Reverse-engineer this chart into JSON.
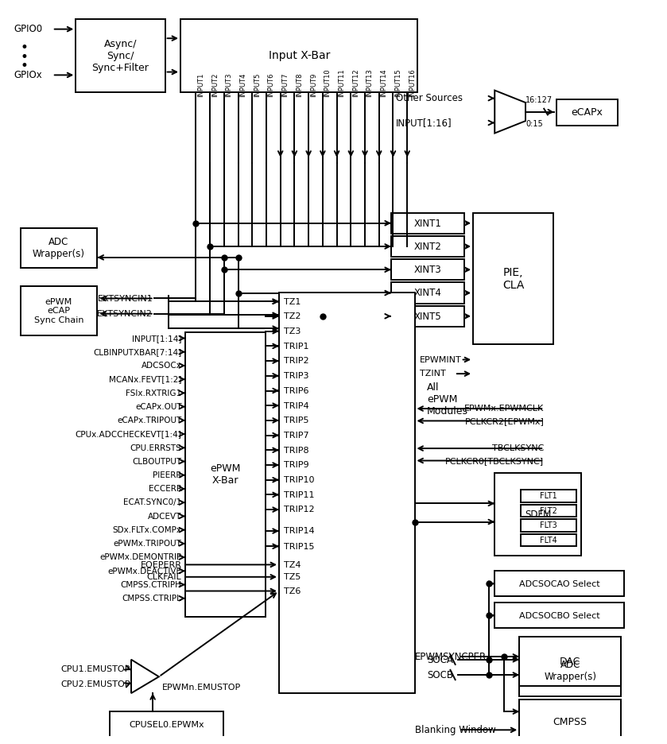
{
  "bg_color": "#ffffff",
  "line_color": "#000000",
  "epwm_left_inputs": [
    "INPUT[1:14]",
    "CLBINPUTXBAR[7:14]",
    "ADCSOCx",
    "MCANx.FEVT[1:2]",
    "FSIx.RXTRIG1",
    "eCAPx.OUT",
    "eCAPx.TRIPOUT",
    "CPUx.ADCCHECKEVT[1:4]",
    "CPU.ERRSTS",
    "CLBOUTPUT",
    "PIEERR",
    "ECCERR",
    "ECAT.SYNC0/1",
    "ADCEVT",
    "SDx.FLTx.COMPx",
    "ePWMx.TRIPOUT",
    "ePWMx.DEMONTRIP",
    "ePWMx.DEACTIVE",
    "CMPSS.CTRIPH",
    "CMPSS.CTRIPL"
  ],
  "epwm_outputs_right": [
    "TZ1",
    "TZ2",
    "TZ3",
    "TRIP1",
    "TRIP2",
    "TRIP3",
    "TRIP6",
    "TRIP4",
    "TRIP5",
    "TRIP7",
    "TRIP8",
    "TRIP9",
    "TRIP10",
    "TRIP11",
    "TRIP12"
  ],
  "xint_labels": [
    "XINT1",
    "XINT2",
    "XINT3",
    "XINT4",
    "XINT5"
  ],
  "input_labels": [
    "INPUT1",
    "INPUT2",
    "INPUT3",
    "INPUT4",
    "INPUT5",
    "INPUT6",
    "INPUT7",
    "INPUT8",
    "INPUT9",
    "INPUT10",
    "INPUT11",
    "INPUT12",
    "INPUT13",
    "INPUT14",
    "INPUT15",
    "INPUT16"
  ]
}
